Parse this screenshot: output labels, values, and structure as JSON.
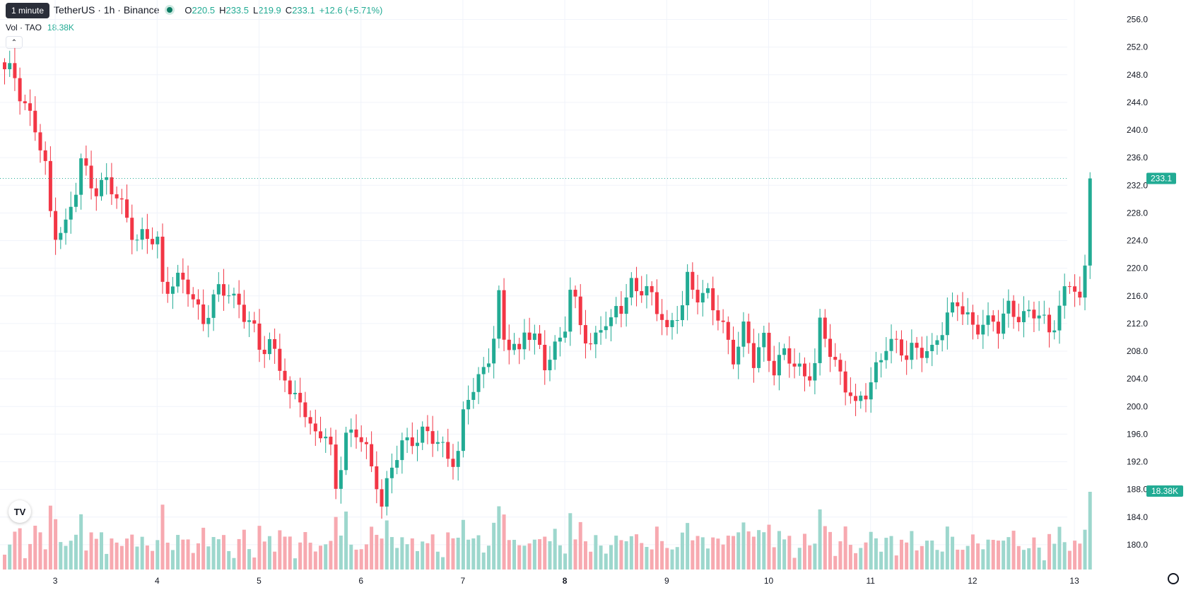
{
  "tooltip": "1 minute",
  "header": {
    "symbol_title": "TetherUS · 1h · Binance",
    "open_label": "O",
    "open": "220.5",
    "high_label": "H",
    "high": "233.5",
    "low_label": "L",
    "low": "219.9",
    "close_label": "C",
    "close": "233.1",
    "change": "+12.6 (+5.71%)"
  },
  "volume_legend": {
    "label": "Vol · TAO",
    "value": "18.38K"
  },
  "colors": {
    "up": "#22ab94",
    "down": "#f23645",
    "up_volume": "#9dd7cd",
    "down_volume": "#f7a9b0",
    "grid": "#f0f3fa",
    "axis_text": "#131722"
  },
  "chart_data": {
    "type": "candlestick",
    "interval": "1h",
    "y_axis": {
      "range": [
        176,
        258
      ],
      "ticks": [
        "180.0",
        "184.0",
        "188.0",
        "192.0",
        "196.0",
        "200.0",
        "204.0",
        "208.0",
        "212.0",
        "216.0",
        "220.0",
        "224.0",
        "228.0",
        "232.0",
        "236.0",
        "240.0",
        "244.0",
        "248.0",
        "252.0",
        "256.0"
      ]
    },
    "x_axis": {
      "ticks": [
        {
          "label": "3",
          "bar": 10,
          "bold": false
        },
        {
          "label": "4",
          "bar": 30,
          "bold": false
        },
        {
          "label": "5",
          "bar": 50,
          "bold": false
        },
        {
          "label": "6",
          "bar": 70,
          "bold": false
        },
        {
          "label": "7",
          "bar": 90,
          "bold": false
        },
        {
          "label": "8",
          "bar": 110,
          "bold": true
        },
        {
          "label": "9",
          "bar": 130,
          "bold": false
        },
        {
          "label": "10",
          "bar": 150,
          "bold": false
        },
        {
          "label": "11",
          "bar": 170,
          "bold": false
        },
        {
          "label": "12",
          "bar": 190,
          "bold": false
        },
        {
          "label": "13",
          "bar": 210,
          "bold": false
        }
      ]
    },
    "grid": true,
    "last_price_label": "233.1",
    "last_volume_label": "18.38K",
    "price_waypoints": [
      [
        0,
        248
      ],
      [
        2,
        248
      ],
      [
        4,
        244
      ],
      [
        6,
        240
      ],
      [
        8,
        234
      ],
      [
        9,
        228
      ],
      [
        10,
        226
      ],
      [
        12,
        226
      ],
      [
        14,
        231
      ],
      [
        15,
        235
      ],
      [
        18,
        232
      ],
      [
        20,
        232
      ],
      [
        24,
        228
      ],
      [
        26,
        224
      ],
      [
        30,
        224
      ],
      [
        31,
        218
      ],
      [
        33,
        218
      ],
      [
        36,
        217
      ],
      [
        39,
        213
      ],
      [
        42,
        216
      ],
      [
        44,
        217
      ],
      [
        46,
        215
      ],
      [
        48,
        212
      ],
      [
        50,
        208
      ],
      [
        52,
        210
      ],
      [
        53,
        208
      ],
      [
        55,
        204
      ],
      [
        56,
        200
      ],
      [
        58,
        202
      ],
      [
        60,
        197
      ],
      [
        62,
        196
      ],
      [
        64,
        193
      ],
      [
        65,
        189
      ],
      [
        67,
        196
      ],
      [
        69,
        196
      ],
      [
        71,
        193
      ],
      [
        73,
        190
      ],
      [
        74,
        186
      ],
      [
        76,
        191
      ],
      [
        78,
        194
      ],
      [
        80,
        196
      ],
      [
        82,
        196
      ],
      [
        84,
        195
      ],
      [
        86,
        194
      ],
      [
        88,
        193
      ],
      [
        89,
        193
      ],
      [
        90,
        198
      ],
      [
        91,
        201
      ],
      [
        93,
        204
      ],
      [
        96,
        210
      ],
      [
        97,
        215
      ],
      [
        98,
        209
      ],
      [
        100,
        209
      ],
      [
        101,
        208
      ],
      [
        102,
        212
      ],
      [
        104,
        209
      ],
      [
        106,
        206
      ],
      [
        108,
        209
      ],
      [
        110,
        212
      ],
      [
        111,
        216
      ],
      [
        113,
        212
      ],
      [
        115,
        209
      ],
      [
        117,
        212
      ],
      [
        119,
        211
      ],
      [
        120,
        214
      ],
      [
        121,
        215
      ],
      [
        123,
        218
      ],
      [
        124,
        217
      ],
      [
        126,
        216
      ],
      [
        129,
        214
      ],
      [
        130,
        211
      ],
      [
        133,
        214
      ],
      [
        134,
        218
      ],
      [
        136,
        217
      ],
      [
        138,
        216
      ],
      [
        139,
        214
      ],
      [
        141,
        211
      ],
      [
        143,
        208
      ],
      [
        145,
        211
      ],
      [
        147,
        206
      ],
      [
        149,
        210
      ],
      [
        151,
        206
      ],
      [
        153,
        207
      ],
      [
        155,
        206
      ],
      [
        157,
        205
      ],
      [
        159,
        206
      ],
      [
        160,
        211
      ],
      [
        162,
        208
      ],
      [
        164,
        205
      ],
      [
        166,
        202
      ],
      [
        167,
        199
      ],
      [
        169,
        202
      ],
      [
        171,
        206
      ],
      [
        173,
        209
      ],
      [
        175,
        208
      ],
      [
        177,
        208
      ],
      [
        178,
        209
      ],
      [
        180,
        208
      ],
      [
        182,
        207
      ],
      [
        184,
        212
      ],
      [
        185,
        214
      ],
      [
        187,
        215
      ],
      [
        189,
        212
      ],
      [
        190,
        211
      ],
      [
        192,
        213
      ],
      [
        194,
        212
      ],
      [
        195,
        211
      ],
      [
        197,
        214
      ],
      [
        199,
        214
      ],
      [
        201,
        213
      ],
      [
        203,
        213
      ],
      [
        205,
        211
      ],
      [
        206,
        213
      ],
      [
        207,
        215
      ],
      [
        209,
        217
      ],
      [
        210,
        217
      ],
      [
        211,
        215
      ],
      [
        212,
        220
      ],
      [
        213,
        233
      ]
    ]
  }
}
